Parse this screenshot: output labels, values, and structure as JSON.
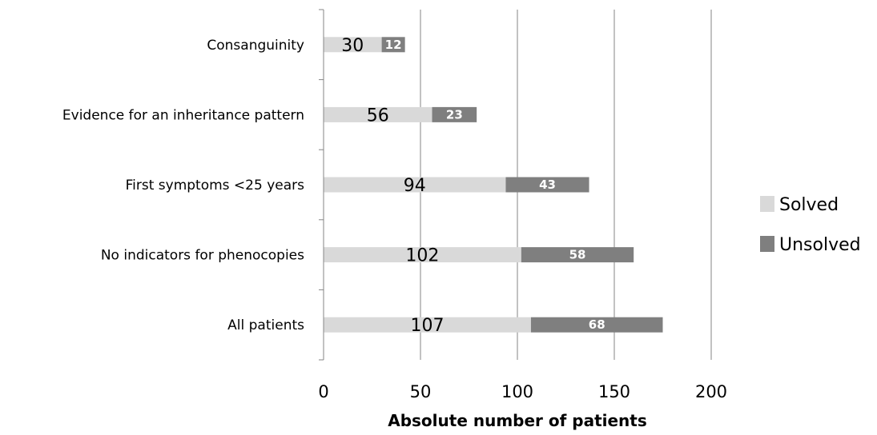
{
  "chart_data": {
    "type": "bar",
    "orientation": "horizontal",
    "stacked": true,
    "title": "",
    "xlabel": "Absolute number of patients",
    "ylabel": "",
    "xlim": [
      0,
      200
    ],
    "x_ticks": [
      0,
      50,
      100,
      150,
      200
    ],
    "x_tick_labels": [
      "0",
      "50",
      "100",
      "150",
      "200"
    ],
    "grid": "vertical major gridlines",
    "legend_position": "right",
    "categories": [
      "Consanguinity",
      "Evidence for an inheritance pattern",
      "First symptoms <25 years",
      "No indicators for phenocopies",
      "All patients"
    ],
    "series": [
      {
        "name": "Solved",
        "color": "#d9d9d9",
        "values": [
          30,
          56,
          94,
          102,
          107
        ]
      },
      {
        "name": "Unsolved",
        "color": "#7f7f7f",
        "values": [
          12,
          23,
          43,
          58,
          68
        ]
      }
    ]
  }
}
